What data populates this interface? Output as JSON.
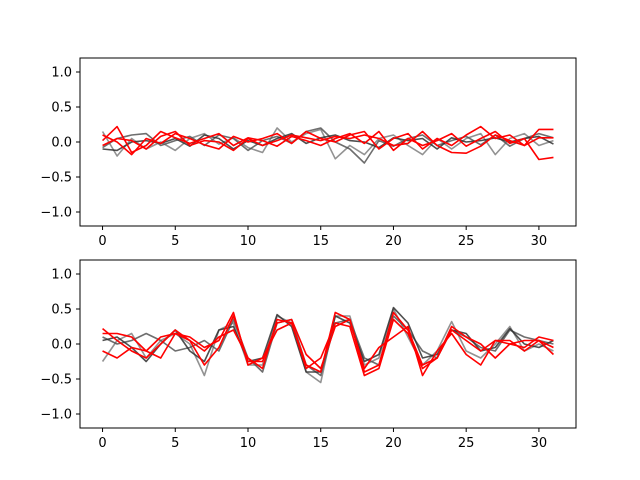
{
  "chart_data": [
    {
      "type": "line",
      "title": "",
      "xlabel": "",
      "ylabel": "",
      "xlim": [
        -1.55,
        32.55
      ],
      "ylim": [
        -1.2,
        1.2
      ],
      "xticks": [
        0,
        5,
        10,
        15,
        20,
        25,
        30
      ],
      "xtick_labels": [
        "0",
        "5",
        "10",
        "15",
        "20",
        "25",
        "30"
      ],
      "yticks": [
        -1.0,
        -0.5,
        0.0,
        0.5,
        1.0
      ],
      "ytick_labels": [
        "−1.0",
        "−0.5",
        "0.0",
        "0.5",
        "1.0"
      ],
      "grid": false,
      "x": [
        0,
        1,
        2,
        3,
        4,
        5,
        6,
        7,
        8,
        9,
        10,
        11,
        12,
        13,
        14,
        15,
        16,
        17,
        18,
        19,
        20,
        21,
        22,
        23,
        24,
        25,
        26,
        27,
        28,
        29,
        30,
        31
      ],
      "series": [
        {
          "color": "#7f7f7f",
          "values": [
            0.15,
            -0.2,
            0.05,
            -0.1,
            0.0,
            -0.12,
            0.05,
            0.12,
            -0.03,
            0.06,
            -0.08,
            -0.15,
            0.2,
            0.0,
            0.12,
            0.18,
            -0.24,
            -0.05,
            -0.18,
            0.05,
            0.1,
            -0.05,
            -0.18,
            0.05,
            -0.1,
            0.05,
            0.12,
            -0.18,
            0.05,
            0.12,
            -0.05,
            0.02
          ]
        },
        {
          "color": "#555555",
          "values": [
            -0.08,
            0.05,
            0.1,
            0.12,
            -0.05,
            0.02,
            0.08,
            -0.05,
            0.1,
            0.05,
            -0.12,
            0.02,
            0.08,
            -0.02,
            0.15,
            0.2,
            0.0,
            -0.1,
            -0.3,
            0.02,
            -0.06,
            0.05,
            0.1,
            -0.05,
            0.02,
            0.08,
            -0.04,
            0.1,
            -0.06,
            0.05,
            0.12,
            0.06
          ]
        },
        {
          "color": "#303030",
          "values": [
            -0.1,
            -0.12,
            0.0,
            0.02,
            -0.02,
            0.05,
            -0.06,
            0.1,
            0.05,
            -0.1,
            0.02,
            -0.05,
            0.05,
            0.12,
            -0.02,
            0.06,
            0.1,
            0.02,
            0.0,
            -0.08,
            0.06,
            0.02,
            0.05,
            -0.1,
            0.06,
            0.0,
            0.02,
            0.06,
            0.0,
            0.05,
            0.08,
            -0.03
          ]
        },
        {
          "color": "#ff0000",
          "values": [
            0.1,
            0.0,
            -0.18,
            0.05,
            -0.02,
            0.12,
            0.05,
            -0.04,
            -0.1,
            0.08,
            0.0,
            0.05,
            0.12,
            -0.02,
            0.15,
            0.05,
            0.0,
            0.1,
            0.15,
            -0.1,
            0.05,
            0.12,
            -0.1,
            0.05,
            -0.05,
            0.1,
            0.22,
            0.05,
            0.1,
            -0.05,
            0.18,
            0.18
          ]
        },
        {
          "color": "#ff0000",
          "values": [
            0.02,
            0.22,
            -0.15,
            -0.05,
            0.15,
            0.06,
            -0.02,
            0.05,
            0.12,
            -0.05,
            0.06,
            0.02,
            -0.06,
            0.08,
            0.02,
            -0.05,
            0.05,
            0.12,
            -0.02,
            0.15,
            -0.12,
            0.05,
            -0.05,
            0.02,
            0.12,
            -0.06,
            0.05,
            0.15,
            -0.02,
            0.05,
            -0.25,
            -0.22
          ]
        },
        {
          "color": "#ff0000",
          "values": [
            -0.05,
            0.05,
            0.02,
            -0.1,
            0.08,
            0.15,
            -0.05,
            0.02,
            0.0,
            -0.12,
            0.05,
            -0.05,
            0.02,
            0.1,
            0.06,
            0.02,
            0.08,
            0.05,
            0.1,
            0.05,
            -0.05,
            -0.02,
            0.15,
            -0.05,
            -0.15,
            -0.16,
            -0.06,
            0.1,
            0.02,
            -0.05,
            0.06,
            0.06
          ]
        }
      ]
    },
    {
      "type": "line",
      "title": "",
      "xlabel": "",
      "ylabel": "",
      "xlim": [
        -1.55,
        32.55
      ],
      "ylim": [
        -1.2,
        1.2
      ],
      "xticks": [
        0,
        5,
        10,
        15,
        20,
        25,
        30
      ],
      "xtick_labels": [
        "0",
        "5",
        "10",
        "15",
        "20",
        "25",
        "30"
      ],
      "yticks": [
        -1.0,
        -0.5,
        0.0,
        0.5,
        1.0
      ],
      "ytick_labels": [
        "−1.0",
        "−0.5",
        "0.0",
        "0.5",
        "1.0"
      ],
      "grid": false,
      "x": [
        0,
        1,
        2,
        3,
        4,
        5,
        6,
        7,
        8,
        9,
        10,
        11,
        12,
        13,
        14,
        15,
        16,
        17,
        18,
        19,
        20,
        21,
        22,
        23,
        24,
        25,
        26,
        27,
        28,
        29,
        30,
        31
      ],
      "series": [
        {
          "color": "#7f7f7f",
          "values": [
            -0.25,
            0.05,
            0.15,
            -0.2,
            0.05,
            0.15,
            0.0,
            -0.45,
            0.2,
            0.3,
            -0.3,
            -0.3,
            0.4,
            0.3,
            -0.4,
            -0.55,
            0.4,
            0.4,
            -0.3,
            -0.2,
            0.5,
            0.1,
            -0.3,
            -0.1,
            0.32,
            -0.1,
            -0.2,
            0.0,
            0.25,
            -0.1,
            0.0,
            -0.1
          ]
        },
        {
          "color": "#555555",
          "values": [
            0.1,
            0.0,
            0.05,
            0.15,
            0.05,
            -0.1,
            -0.05,
            0.05,
            -0.1,
            0.35,
            -0.2,
            -0.4,
            0.3,
            0.35,
            -0.3,
            -0.45,
            0.3,
            0.35,
            -0.2,
            -0.3,
            0.4,
            0.2,
            -0.1,
            -0.2,
            0.2,
            0.1,
            -0.05,
            -0.1,
            0.2,
            0.1,
            0.05,
            0.0
          ]
        },
        {
          "color": "#303030",
          "values": [
            0.05,
            0.1,
            -0.05,
            -0.25,
            0.0,
            0.2,
            -0.1,
            -0.25,
            0.2,
            0.25,
            -0.25,
            -0.2,
            0.42,
            0.25,
            -0.4,
            -0.4,
            0.4,
            0.3,
            -0.25,
            -0.15,
            0.52,
            0.3,
            -0.2,
            -0.15,
            0.2,
            0.15,
            -0.1,
            -0.05,
            0.22,
            0.0,
            -0.05,
            0.05
          ]
        },
        {
          "color": "#ff0000",
          "values": [
            0.22,
            0.05,
            -0.1,
            -0.2,
            0.0,
            0.2,
            0.05,
            -0.3,
            -0.05,
            0.4,
            -0.25,
            -0.25,
            0.3,
            0.35,
            -0.15,
            -0.35,
            0.25,
            0.35,
            -0.4,
            -0.3,
            0.45,
            0.2,
            -0.3,
            -0.2,
            0.2,
            0.05,
            -0.1,
            0.05,
            0.0,
            -0.05,
            0.1,
            0.05
          ]
        },
        {
          "color": "#ff0000",
          "values": [
            0.15,
            0.15,
            0.1,
            -0.1,
            0.1,
            0.15,
            0.05,
            -0.1,
            0.1,
            0.2,
            -0.2,
            -0.35,
            0.35,
            0.3,
            -0.3,
            -0.4,
            0.45,
            0.35,
            -0.35,
            -0.05,
            0.1,
            0.25,
            -0.45,
            -0.1,
            0.15,
            -0.15,
            -0.3,
            0.05,
            0.05,
            -0.1,
            0.05,
            -0.15
          ]
        },
        {
          "color": "#ff0000",
          "values": [
            -0.1,
            -0.2,
            -0.05,
            -0.1,
            -0.2,
            0.15,
            0.1,
            -0.05,
            0.05,
            0.45,
            -0.3,
            -0.2,
            0.2,
            0.3,
            -0.35,
            -0.2,
            0.3,
            0.25,
            -0.45,
            -0.35,
            0.35,
            0.15,
            -0.35,
            -0.2,
            0.25,
            0.1,
            0.0,
            -0.2,
            0.0,
            0.05,
            0.05,
            -0.05
          ]
        }
      ]
    }
  ]
}
